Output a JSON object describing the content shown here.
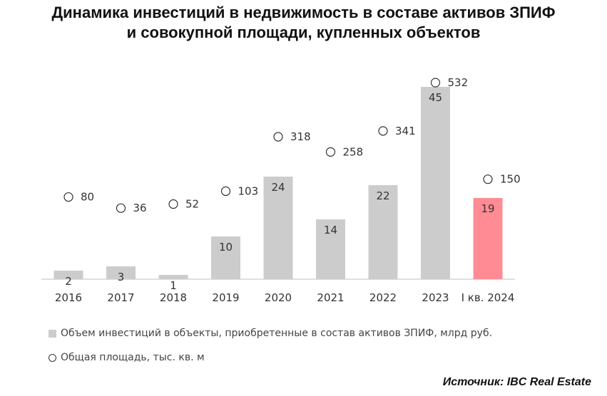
{
  "chart_data": {
    "type": "bar",
    "title_line1": "Динамика инвестиций в недвижимость в составе активов ЗПИФ",
    "title_line2": "и совокупной площади, купленных объектов",
    "categories": [
      "2016",
      "2017",
      "2018",
      "2019",
      "2020",
      "2021",
      "2022",
      "2023",
      "I кв. 2024"
    ],
    "series": [
      {
        "name": "Объем инвестиций в объекты, приобретенные в состав активов ЗПИФ, млрд руб.",
        "values": [
          2,
          3,
          1,
          10,
          24,
          14,
          22,
          45,
          19
        ],
        "color": "#cccccc",
        "highlight_color": "#ff8b94",
        "highlight_index": 8,
        "ylim": [
          0,
          45
        ]
      },
      {
        "name": "Общая площадь, тыс. кв. м",
        "values": [
          80,
          36,
          52,
          103,
          318,
          258,
          341,
          532,
          150
        ],
        "marker": "circle",
        "ylim": [
          0,
          532
        ]
      }
    ],
    "source": "Источник: IBC Real Estate"
  }
}
